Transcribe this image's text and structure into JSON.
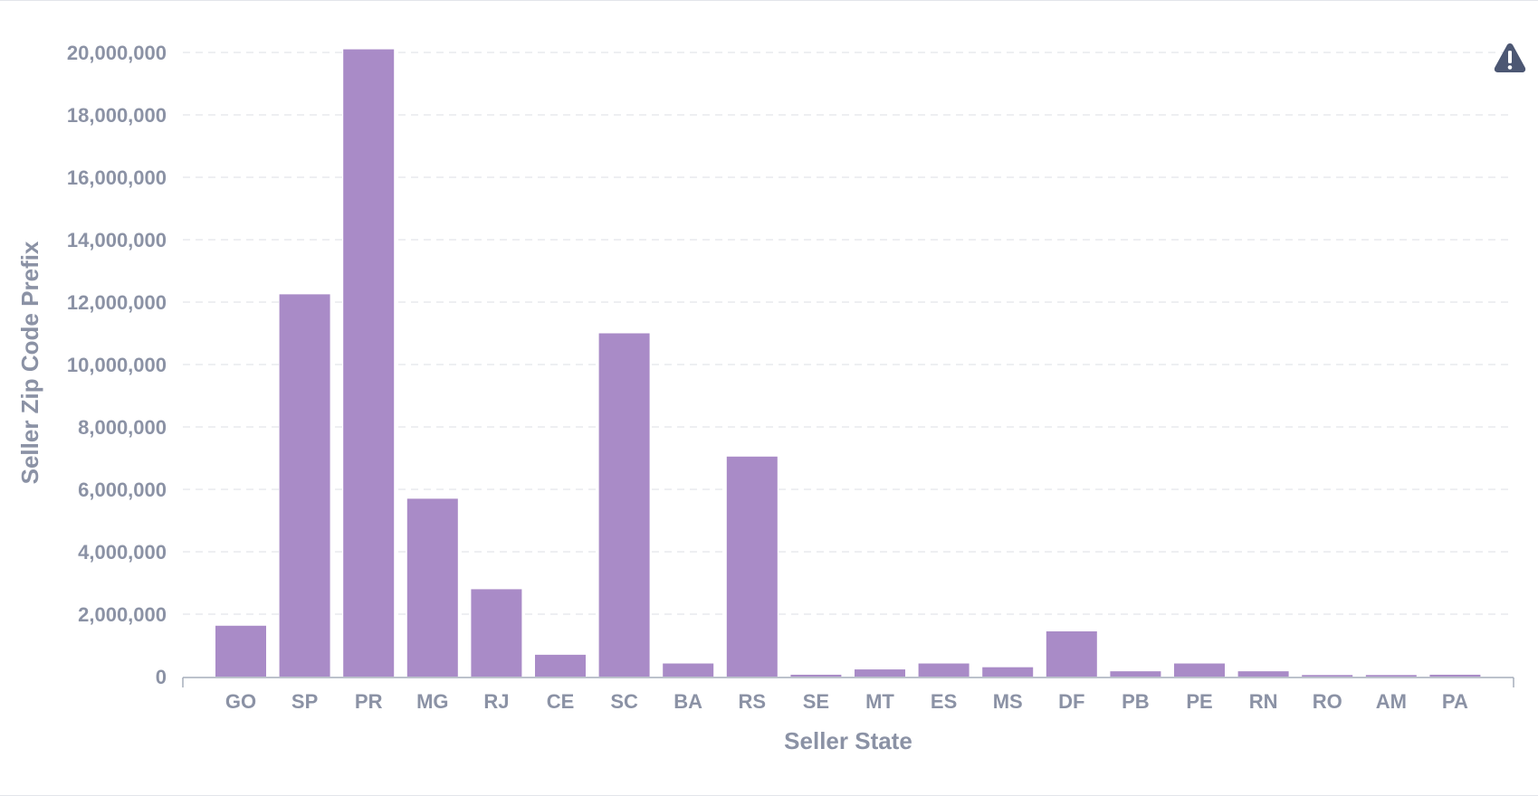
{
  "chart_data": {
    "type": "bar",
    "xlabel": "Seller State",
    "ylabel": "Seller Zip Code Prefix",
    "categories": [
      "GO",
      "SP",
      "PR",
      "MG",
      "RJ",
      "CE",
      "SC",
      "BA",
      "RS",
      "SE",
      "MT",
      "ES",
      "MS",
      "DF",
      "PB",
      "PE",
      "RN",
      "RO",
      "AM",
      "PA"
    ],
    "values": [
      1630000,
      12250000,
      20100000,
      5700000,
      2800000,
      700000,
      11000000,
      420000,
      7050000,
      60000,
      230000,
      420000,
      300000,
      1450000,
      170000,
      420000,
      170000,
      50000,
      50000,
      60000
    ],
    "ylim": [
      0,
      20000000
    ],
    "yticks": [
      0,
      2000000,
      4000000,
      6000000,
      8000000,
      10000000,
      12000000,
      14000000,
      16000000,
      18000000,
      20000000
    ],
    "ytick_labels": [
      "0",
      "2,000,000",
      "4,000,000",
      "6,000,000",
      "8,000,000",
      "10,000,000",
      "12,000,000",
      "14,000,000",
      "16,000,000",
      "18,000,000",
      "20,000,000"
    ],
    "grid": true,
    "colors": {
      "bar": "#a98bc7",
      "tick_text": "#8b92a5",
      "grid": "#e8eaee",
      "axis": "#a6adbb"
    }
  },
  "toolbar": {
    "warning_icon": "warning-triangle-icon",
    "warning_color": "#4c5773"
  }
}
